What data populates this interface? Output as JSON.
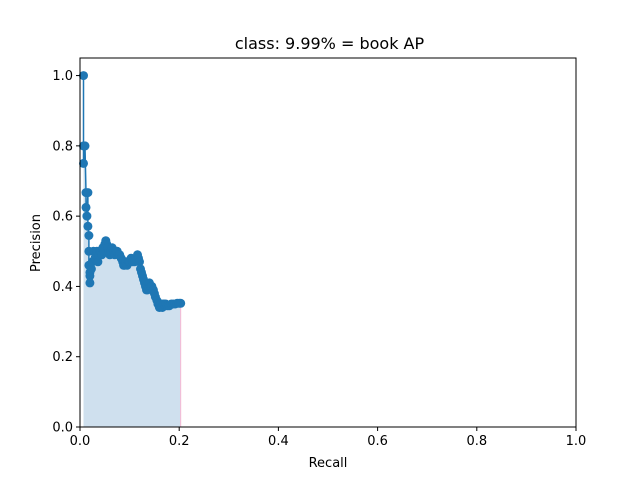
{
  "chart_data": {
    "type": "line",
    "title": "class: 9.99% = book AP",
    "xlabel": "Recall",
    "ylabel": "Precision",
    "xlim": [
      0,
      1
    ],
    "ylim": [
      0,
      1.05
    ],
    "xticks": [
      "0.0",
      "0.2",
      "0.4",
      "0.6",
      "0.8",
      "1.0"
    ],
    "yticks": [
      "0.0",
      "0.2",
      "0.4",
      "0.6",
      "0.8",
      "1.0"
    ],
    "grid": false,
    "colors": {
      "line": "#1f77b4",
      "fill": "#cfe0ee",
      "end_line": "#f7b6d2"
    },
    "series": [
      {
        "x": [
          0.007,
          0.007,
          0.007,
          0.01,
          0.012,
          0.012,
          0.014,
          0.016,
          0.016,
          0.018,
          0.018,
          0.018,
          0.02,
          0.02,
          0.02,
          0.023,
          0.025,
          0.027,
          0.03,
          0.032,
          0.034,
          0.036,
          0.038,
          0.04,
          0.042,
          0.044,
          0.046,
          0.048,
          0.05,
          0.052,
          0.054,
          0.056,
          0.058,
          0.06,
          0.062,
          0.065,
          0.068,
          0.07,
          0.072,
          0.075,
          0.078,
          0.08,
          0.083,
          0.086,
          0.088,
          0.09,
          0.092,
          0.095,
          0.098,
          0.1,
          0.103,
          0.106,
          0.11,
          0.113,
          0.116,
          0.118,
          0.12,
          0.122,
          0.124,
          0.126,
          0.128,
          0.13,
          0.132,
          0.134,
          0.136,
          0.138,
          0.14,
          0.142,
          0.145,
          0.148,
          0.15,
          0.152,
          0.155,
          0.157,
          0.16,
          0.162,
          0.164,
          0.166,
          0.168,
          0.17,
          0.173,
          0.176,
          0.18,
          0.184,
          0.188,
          0.192,
          0.196,
          0.2,
          0.203
        ],
        "y": [
          1.0,
          0.8,
          0.75,
          0.8,
          0.667,
          0.625,
          0.6,
          0.667,
          0.571,
          0.545,
          0.5,
          0.46,
          0.44,
          0.43,
          0.41,
          0.45,
          0.47,
          0.5,
          0.48,
          0.49,
          0.5,
          0.47,
          0.49,
          0.5,
          0.5,
          0.49,
          0.51,
          0.5,
          0.52,
          0.53,
          0.52,
          0.51,
          0.5,
          0.49,
          0.5,
          0.51,
          0.5,
          0.49,
          0.5,
          0.5,
          0.49,
          0.49,
          0.48,
          0.47,
          0.46,
          0.46,
          0.47,
          0.46,
          0.47,
          0.47,
          0.48,
          0.47,
          0.47,
          0.48,
          0.49,
          0.48,
          0.47,
          0.45,
          0.44,
          0.43,
          0.42,
          0.41,
          0.4,
          0.39,
          0.39,
          0.4,
          0.41,
          0.4,
          0.4,
          0.39,
          0.38,
          0.37,
          0.36,
          0.35,
          0.34,
          0.35,
          0.35,
          0.34,
          0.35,
          0.35,
          0.35,
          0.345,
          0.345,
          0.35,
          0.35,
          0.35,
          0.352,
          0.352,
          0.352
        ]
      }
    ]
  }
}
